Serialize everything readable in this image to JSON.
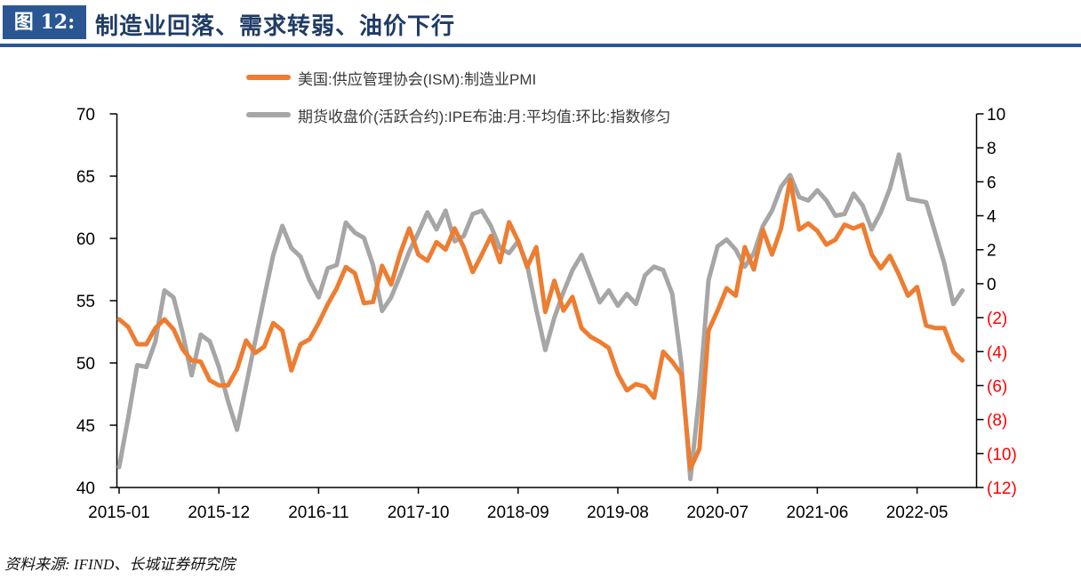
{
  "figure": {
    "label": "图 12:",
    "title": "制造业回落、需求转弱、油价下行"
  },
  "source_note": "资料来源: IFIND、长城证券研究院",
  "colors": {
    "navy_box": "#2A5793",
    "title_text": "#1F3B66",
    "pmi_orange": "#ED7D31",
    "oil_gray": "#A6A6A6",
    "negative_red": "#FF0000",
    "axis_black": "#000000"
  },
  "legend": {
    "items": [
      {
        "label": "美国:供应管理协会(ISM):制造业PMI",
        "color": "#ED7D31"
      },
      {
        "label": "期货收盘价(活跃合约):IPE布油:月:平均值:环比:指数修匀",
        "color": "#A6A6A6"
      }
    ]
  },
  "chart_data": {
    "type": "line",
    "title": "制造业回落、需求转弱、油价下行",
    "x_range": {
      "start": "2015-01",
      "end": "2022-10",
      "frequency": "monthly"
    },
    "x_tick_labels": [
      "2015-01",
      "2015-12",
      "2016-11",
      "2017-10",
      "2018-09",
      "2019-08",
      "2020-07",
      "2021-06",
      "2022-05"
    ],
    "x_tick_month_index": [
      0,
      11,
      22,
      33,
      44,
      55,
      66,
      77,
      88
    ],
    "y_left_axis": {
      "min": 40,
      "max": 70,
      "step": 5,
      "ticks": [
        70,
        65,
        60,
        55,
        50,
        45,
        40
      ]
    },
    "y_right_axis": {
      "min": -12,
      "max": 10,
      "step": 2,
      "ticks": [
        10,
        8,
        6,
        4,
        2,
        0,
        -2,
        -4,
        -6,
        -8,
        -10,
        -12
      ],
      "negative_format": "parentheses",
      "negative_color": "#FF0000"
    },
    "grid": false,
    "legend_position": "top",
    "series": [
      {
        "name": "美国:供应管理协会(ISM):制造业PMI",
        "axis": "left",
        "color": "#ED7D31",
        "values": [
          53.5,
          52.9,
          51.5,
          51.5,
          52.8,
          53.5,
          52.7,
          51.1,
          50.2,
          50.1,
          48.6,
          48.2,
          48.2,
          49.5,
          51.8,
          50.8,
          51.3,
          53.2,
          52.6,
          49.4,
          51.5,
          51.9,
          53.2,
          54.7,
          56.0,
          57.7,
          57.2,
          54.8,
          54.9,
          57.8,
          56.3,
          58.8,
          60.8,
          58.7,
          58.2,
          59.7,
          59.1,
          60.8,
          59.3,
          57.3,
          58.7,
          60.2,
          58.1,
          61.3,
          59.8,
          57.7,
          59.3,
          54.1,
          56.6,
          54.2,
          55.3,
          52.8,
          52.1,
          51.7,
          51.2,
          49.1,
          47.8,
          48.3,
          48.1,
          47.2,
          50.9,
          50.1,
          49.1,
          41.5,
          43.1,
          52.6,
          54.2,
          56.0,
          55.4,
          59.3,
          57.5,
          60.7,
          58.7,
          60.8,
          64.7,
          60.7,
          61.2,
          60.6,
          59.5,
          59.9,
          61.1,
          60.8,
          61.1,
          58.7,
          57.6,
          58.6,
          57.1,
          55.4,
          56.1,
          53.0,
          52.8,
          52.8,
          50.9,
          50.2
        ]
      },
      {
        "name": "期货收盘价(活跃合约):IPE布油:月:平均值:环比:指数修匀",
        "axis": "right",
        "color": "#A6A6A6",
        "values": [
          -10.8,
          -7.9,
          -4.8,
          -4.9,
          -3.4,
          -0.4,
          -0.8,
          -2.9,
          -5.4,
          -3.0,
          -3.4,
          -4.9,
          -6.9,
          -8.6,
          -6.0,
          -3.4,
          -0.8,
          1.7,
          3.4,
          2.1,
          1.6,
          0.2,
          -0.8,
          0.9,
          1.1,
          3.6,
          3.0,
          2.7,
          1.1,
          -1.6,
          -0.8,
          0.5,
          1.9,
          3.0,
          4.2,
          3.2,
          4.3,
          2.5,
          2.8,
          4.1,
          4.3,
          3.4,
          2.1,
          1.8,
          2.5,
          1.1,
          -1.5,
          -3.9,
          -2.0,
          -0.5,
          0.8,
          1.7,
          0.3,
          -1.1,
          -0.4,
          -1.3,
          -0.6,
          -1.2,
          0.5,
          1.0,
          0.8,
          -0.6,
          -4.7,
          -11.5,
          -6.5,
          0.2,
          2.2,
          2.6,
          2.0,
          1.0,
          1.8,
          3.4,
          4.3,
          5.7,
          6.4,
          5.1,
          4.9,
          5.5,
          4.9,
          4.0,
          4.1,
          5.3,
          4.6,
          3.2,
          4.2,
          5.6,
          7.6,
          5.0,
          4.9,
          4.8,
          3.0,
          1.2,
          -1.2,
          -0.4
        ]
      }
    ]
  }
}
